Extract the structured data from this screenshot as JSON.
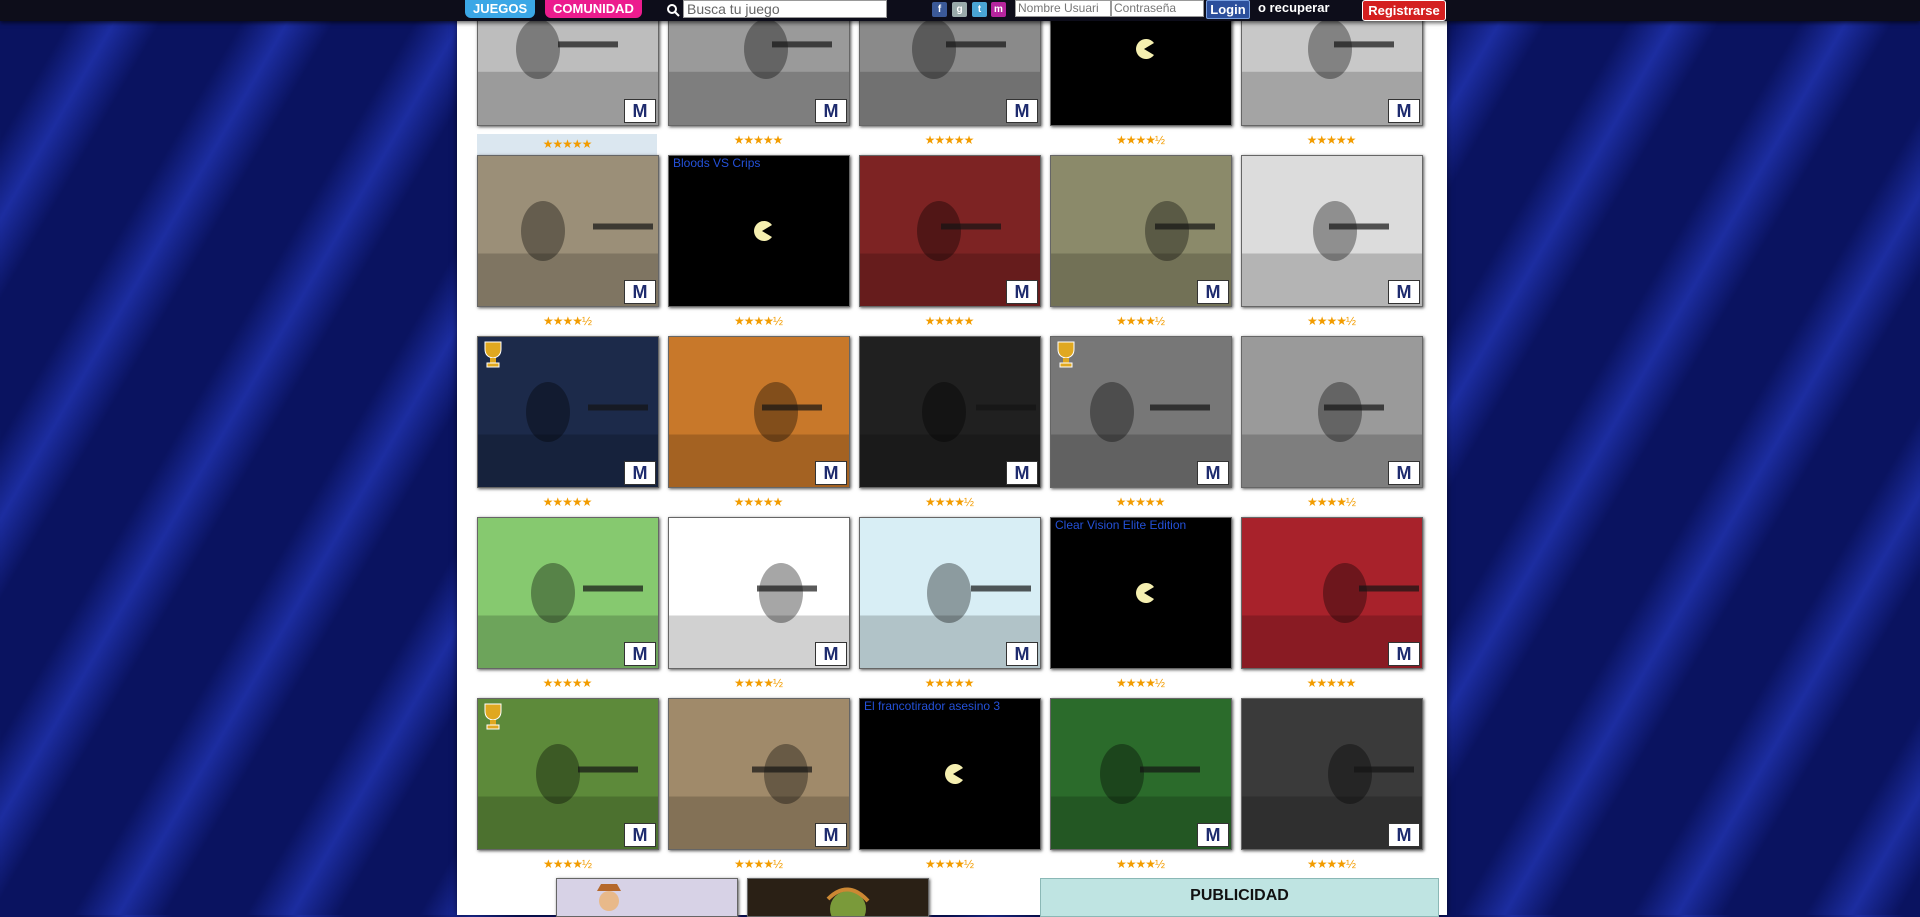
{
  "topbar": {
    "tab_juegos": "JUEGOS",
    "tab_comunidad": "COMUNIDAD",
    "search_placeholder": "Busca tu juego",
    "username_placeholder": "Nombre Usuari",
    "password_placeholder": "Contraseña",
    "login_label": "Login",
    "recover_label": "o recuperar",
    "register_label": "Registrarse",
    "social_icons": [
      "facebook-icon",
      "google-icon",
      "twitter-icon",
      "myspace-icon"
    ]
  },
  "games": [
    {
      "alt": "",
      "rating": "★★★★★",
      "highlight": true,
      "broken": false
    },
    {
      "alt": "",
      "rating": "★★★★★",
      "broken": false
    },
    {
      "alt": "",
      "rating": "★★★★★",
      "broken": false
    },
    {
      "alt": "",
      "rating": "★★★★½",
      "broken": true
    },
    {
      "alt": "",
      "rating": "★★★★★",
      "broken": false
    },
    {
      "alt": "",
      "rating": "★★★★½",
      "broken": false
    },
    {
      "alt": "Bloods VS Crips",
      "rating": "★★★★½",
      "broken": true
    },
    {
      "alt": "",
      "rating": "★★★★★",
      "broken": false
    },
    {
      "alt": "",
      "rating": "★★★★½",
      "broken": false
    },
    {
      "alt": "",
      "rating": "★★★★½",
      "broken": false
    },
    {
      "alt": "",
      "rating": "★★★★★",
      "broken": false,
      "trophy": true
    },
    {
      "alt": "",
      "rating": "★★★★★",
      "broken": false
    },
    {
      "alt": "",
      "rating": "★★★★½",
      "broken": false
    },
    {
      "alt": "",
      "rating": "★★★★★",
      "broken": false,
      "trophy": true
    },
    {
      "alt": "",
      "rating": "★★★★½",
      "broken": false
    },
    {
      "alt": "",
      "rating": "★★★★★",
      "broken": false
    },
    {
      "alt": "",
      "rating": "★★★★½",
      "broken": false
    },
    {
      "alt": "",
      "rating": "★★★★★",
      "broken": false
    },
    {
      "alt": "Clear Vision Elite Edition",
      "rating": "★★★★½",
      "broken": true
    },
    {
      "alt": "",
      "rating": "★★★★★",
      "broken": false
    },
    {
      "alt": "",
      "rating": "★★★★½",
      "broken": false,
      "trophy": true
    },
    {
      "alt": "",
      "rating": "★★★★½",
      "broken": false
    },
    {
      "alt": "El francotirador asesino 3",
      "rating": "★★★★½",
      "broken": true
    },
    {
      "alt": "",
      "rating": "★★★★½",
      "broken": false
    },
    {
      "alt": "",
      "rating": "★★★★½",
      "broken": false
    }
  ],
  "m_badge": "M",
  "ad_label": "PUBLICIDAD"
}
